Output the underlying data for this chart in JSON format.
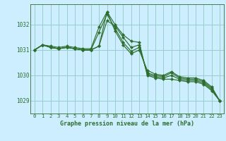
{
  "background_color": "#cceeff",
  "grid_color": "#99cccc",
  "line_color": "#2d6e2d",
  "title": "Graphe pression niveau de la mer (hPa)",
  "xlim": [
    -0.5,
    23.5
  ],
  "ylim": [
    1028.5,
    1032.8
  ],
  "yticks": [
    1029,
    1030,
    1031,
    1032
  ],
  "xticks": [
    0,
    1,
    2,
    3,
    4,
    5,
    6,
    7,
    8,
    9,
    10,
    11,
    12,
    13,
    14,
    15,
    16,
    17,
    18,
    19,
    20,
    21,
    22,
    23
  ],
  "series": [
    [
      1031.0,
      1031.2,
      1031.1,
      1031.05,
      1031.1,
      1031.05,
      1031.0,
      1031.0,
      1031.15,
      1032.5,
      1032.0,
      1031.6,
      1031.35,
      1031.3,
      1030.0,
      1029.9,
      1029.85,
      1029.85,
      1029.8,
      1029.75,
      1029.75,
      1029.65,
      1029.4,
      1029.0
    ],
    [
      1031.0,
      1031.2,
      1031.1,
      1031.05,
      1031.1,
      1031.05,
      1031.0,
      1031.0,
      1031.15,
      1032.15,
      1031.95,
      1031.5,
      1031.1,
      1031.2,
      1030.05,
      1029.95,
      1029.9,
      1030.0,
      1029.85,
      1029.8,
      1029.8,
      1029.7,
      1029.45,
      1029.0
    ],
    [
      1031.0,
      1031.2,
      1031.1,
      1031.05,
      1031.1,
      1031.05,
      1031.0,
      1031.0,
      1031.7,
      1032.4,
      1031.85,
      1031.3,
      1030.95,
      1031.1,
      1030.1,
      1030.0,
      1029.95,
      1030.1,
      1029.9,
      1029.85,
      1029.85,
      1029.75,
      1029.5,
      1029.0
    ],
    [
      1031.0,
      1031.2,
      1031.15,
      1031.1,
      1031.15,
      1031.1,
      1031.05,
      1031.05,
      1031.9,
      1032.5,
      1031.75,
      1031.2,
      1030.85,
      1031.0,
      1030.2,
      1030.05,
      1030.0,
      1030.15,
      1029.95,
      1029.9,
      1029.9,
      1029.8,
      1029.55,
      1029.0
    ]
  ]
}
